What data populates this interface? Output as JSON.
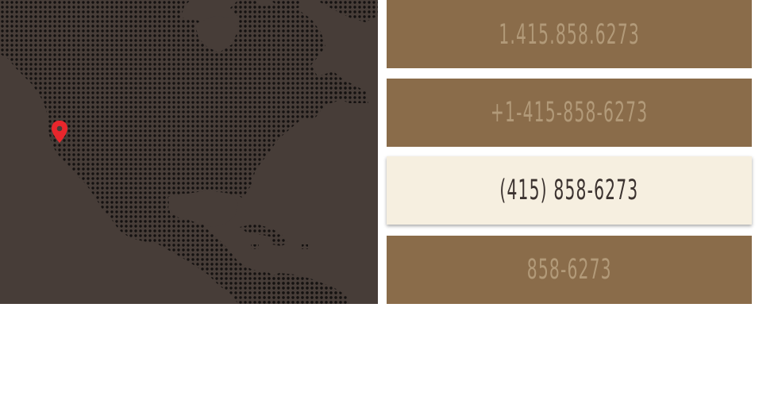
{
  "colors": {
    "map_background": "#473d38",
    "map_dots": "#141110",
    "pin": "#e8262c",
    "card_inactive_bg": "#8a6c4a",
    "card_inactive_text": "#b29a79",
    "card_active_bg": "#f6efe0",
    "card_active_text": "#3c3330"
  },
  "map": {
    "pin_icon": "map-pin-icon"
  },
  "phone_formats": [
    {
      "label": "1.415.858.6273",
      "selected": false
    },
    {
      "label": "+1-415-858-6273",
      "selected": false
    },
    {
      "label": "(415) 858-6273",
      "selected": true
    },
    {
      "label": "858-6273",
      "selected": false
    }
  ]
}
